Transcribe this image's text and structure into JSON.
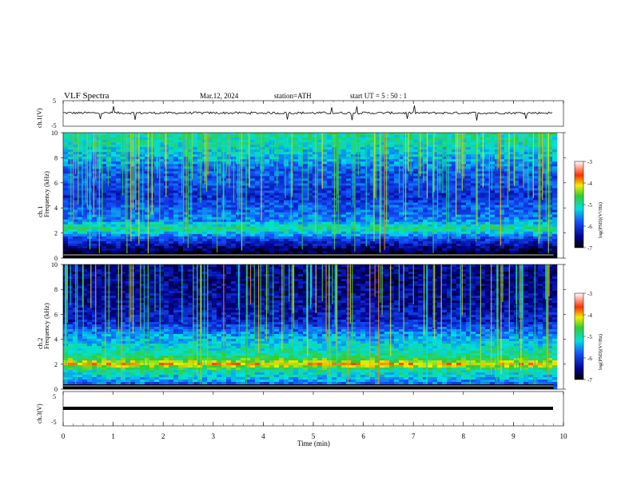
{
  "header": {
    "title": "VLF  Spectra",
    "date": "Mar.12, 2024",
    "station": "station=ATH",
    "start": "start  UT  =   5  : 50 : 1"
  },
  "colors": {
    "spectrogram_palette": [
      "#000000",
      "#00008c",
      "#1450ff",
      "#00e0e0",
      "#32cd32",
      "#f0f000",
      "#ff3000",
      "#ffffff"
    ]
  },
  "chart_data": [
    {
      "type": "line",
      "ylabel": "ch.1(V)",
      "y_ticks": [
        "5",
        "-5"
      ],
      "ylim": [
        -5,
        5
      ],
      "xlabel": "Time  (min)",
      "x_ticks": [
        "0",
        "1",
        "2",
        "3",
        "4",
        "5",
        "6",
        "7",
        "8",
        "9",
        "10"
      ],
      "xlim": [
        0,
        10
      ],
      "data_end_min": 9.8,
      "mean_level": 0.2,
      "noise_amplitude": 1.0
    },
    {
      "type": "heatmap",
      "channel_label": "ch.1",
      "ylabel": "Frequency  (kHz)",
      "y_ticks": [
        "0",
        "2",
        "4",
        "6",
        "8",
        "10"
      ],
      "ylim": [
        0,
        10
      ],
      "xlim": [
        0,
        10
      ],
      "colorbar_label": "log(PSD)(V²/Hz)",
      "colorbar_ticks": [
        "-3",
        "-4",
        "-5",
        "-6",
        "-7"
      ],
      "colorbar_range": [
        -7,
        -3
      ],
      "log_psd_profile_by_khz": [
        {
          "f": 0.2,
          "v": -7.0
        },
        {
          "f": 0.5,
          "v": -6.8
        },
        {
          "f": 1.0,
          "v": -6.4
        },
        {
          "f": 1.5,
          "v": -6.0
        },
        {
          "f": 2.0,
          "v": -5.3
        },
        {
          "f": 2.4,
          "v": -4.9
        },
        {
          "f": 3.0,
          "v": -5.6
        },
        {
          "f": 4.0,
          "v": -5.8
        },
        {
          "f": 5.0,
          "v": -6.1
        },
        {
          "f": 6.0,
          "v": -5.9
        },
        {
          "f": 7.0,
          "v": -5.8
        },
        {
          "f": 8.0,
          "v": -5.4
        },
        {
          "f": 9.0,
          "v": -5.1
        },
        {
          "f": 10.0,
          "v": -5.0
        }
      ]
    },
    {
      "type": "heatmap",
      "channel_label": "ch.2",
      "ylabel": "Frequency  (kHz)",
      "y_ticks": [
        "0",
        "2",
        "4",
        "6",
        "8",
        "10"
      ],
      "ylim": [
        0,
        10
      ],
      "xlim": [
        0,
        10
      ],
      "colorbar_label": "log(PSD)(V²/Hz)",
      "colorbar_ticks": [
        "-3",
        "-4",
        "-5",
        "-6",
        "-7"
      ],
      "colorbar_range": [
        -7,
        -3
      ],
      "log_psd_profile_by_khz": [
        {
          "f": 0.2,
          "v": -6.0
        },
        {
          "f": 0.8,
          "v": -5.4
        },
        {
          "f": 1.5,
          "v": -5.0
        },
        {
          "f": 2.0,
          "v": -4.0
        },
        {
          "f": 2.5,
          "v": -4.8
        },
        {
          "f": 3.0,
          "v": -5.0
        },
        {
          "f": 4.0,
          "v": -5.4
        },
        {
          "f": 4.5,
          "v": -5.6
        },
        {
          "f": 5.5,
          "v": -6.2
        },
        {
          "f": 7.0,
          "v": -6.4
        },
        {
          "f": 8.5,
          "v": -6.5
        },
        {
          "f": 10.0,
          "v": -6.5
        }
      ]
    },
    {
      "type": "line",
      "ylabel": "ch.3(V)",
      "y_ticks": [
        "5",
        "-5"
      ],
      "ylim": [
        -5,
        5
      ],
      "xlim": [
        0,
        10
      ],
      "data_end_min": 9.8,
      "mean_level": -1.7,
      "noise_amplitude": 0.0
    }
  ]
}
